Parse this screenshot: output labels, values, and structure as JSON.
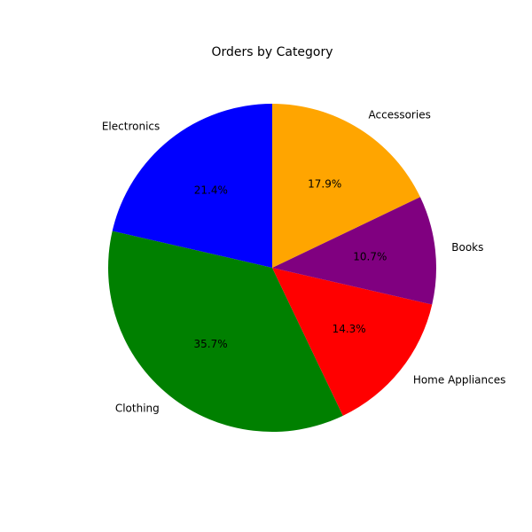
{
  "chart_data": {
    "type": "pie",
    "title": "Orders by Category",
    "start_angle_deg": 90,
    "direction": "counterclockwise",
    "slices": [
      {
        "label": "Electronics",
        "value": 21.4,
        "percent_label": "21.4%",
        "color": "#0000ff"
      },
      {
        "label": "Clothing",
        "value": 35.7,
        "percent_label": "35.7%",
        "color": "#008000"
      },
      {
        "label": "Home Appliances",
        "value": 14.3,
        "percent_label": "14.3%",
        "color": "#ff0000"
      },
      {
        "label": "Books",
        "value": 10.7,
        "percent_label": "10.7%",
        "color": "#800080"
      },
      {
        "label": "Accessories",
        "value": 17.9,
        "percent_label": "17.9%",
        "color": "#ffa500"
      }
    ]
  }
}
